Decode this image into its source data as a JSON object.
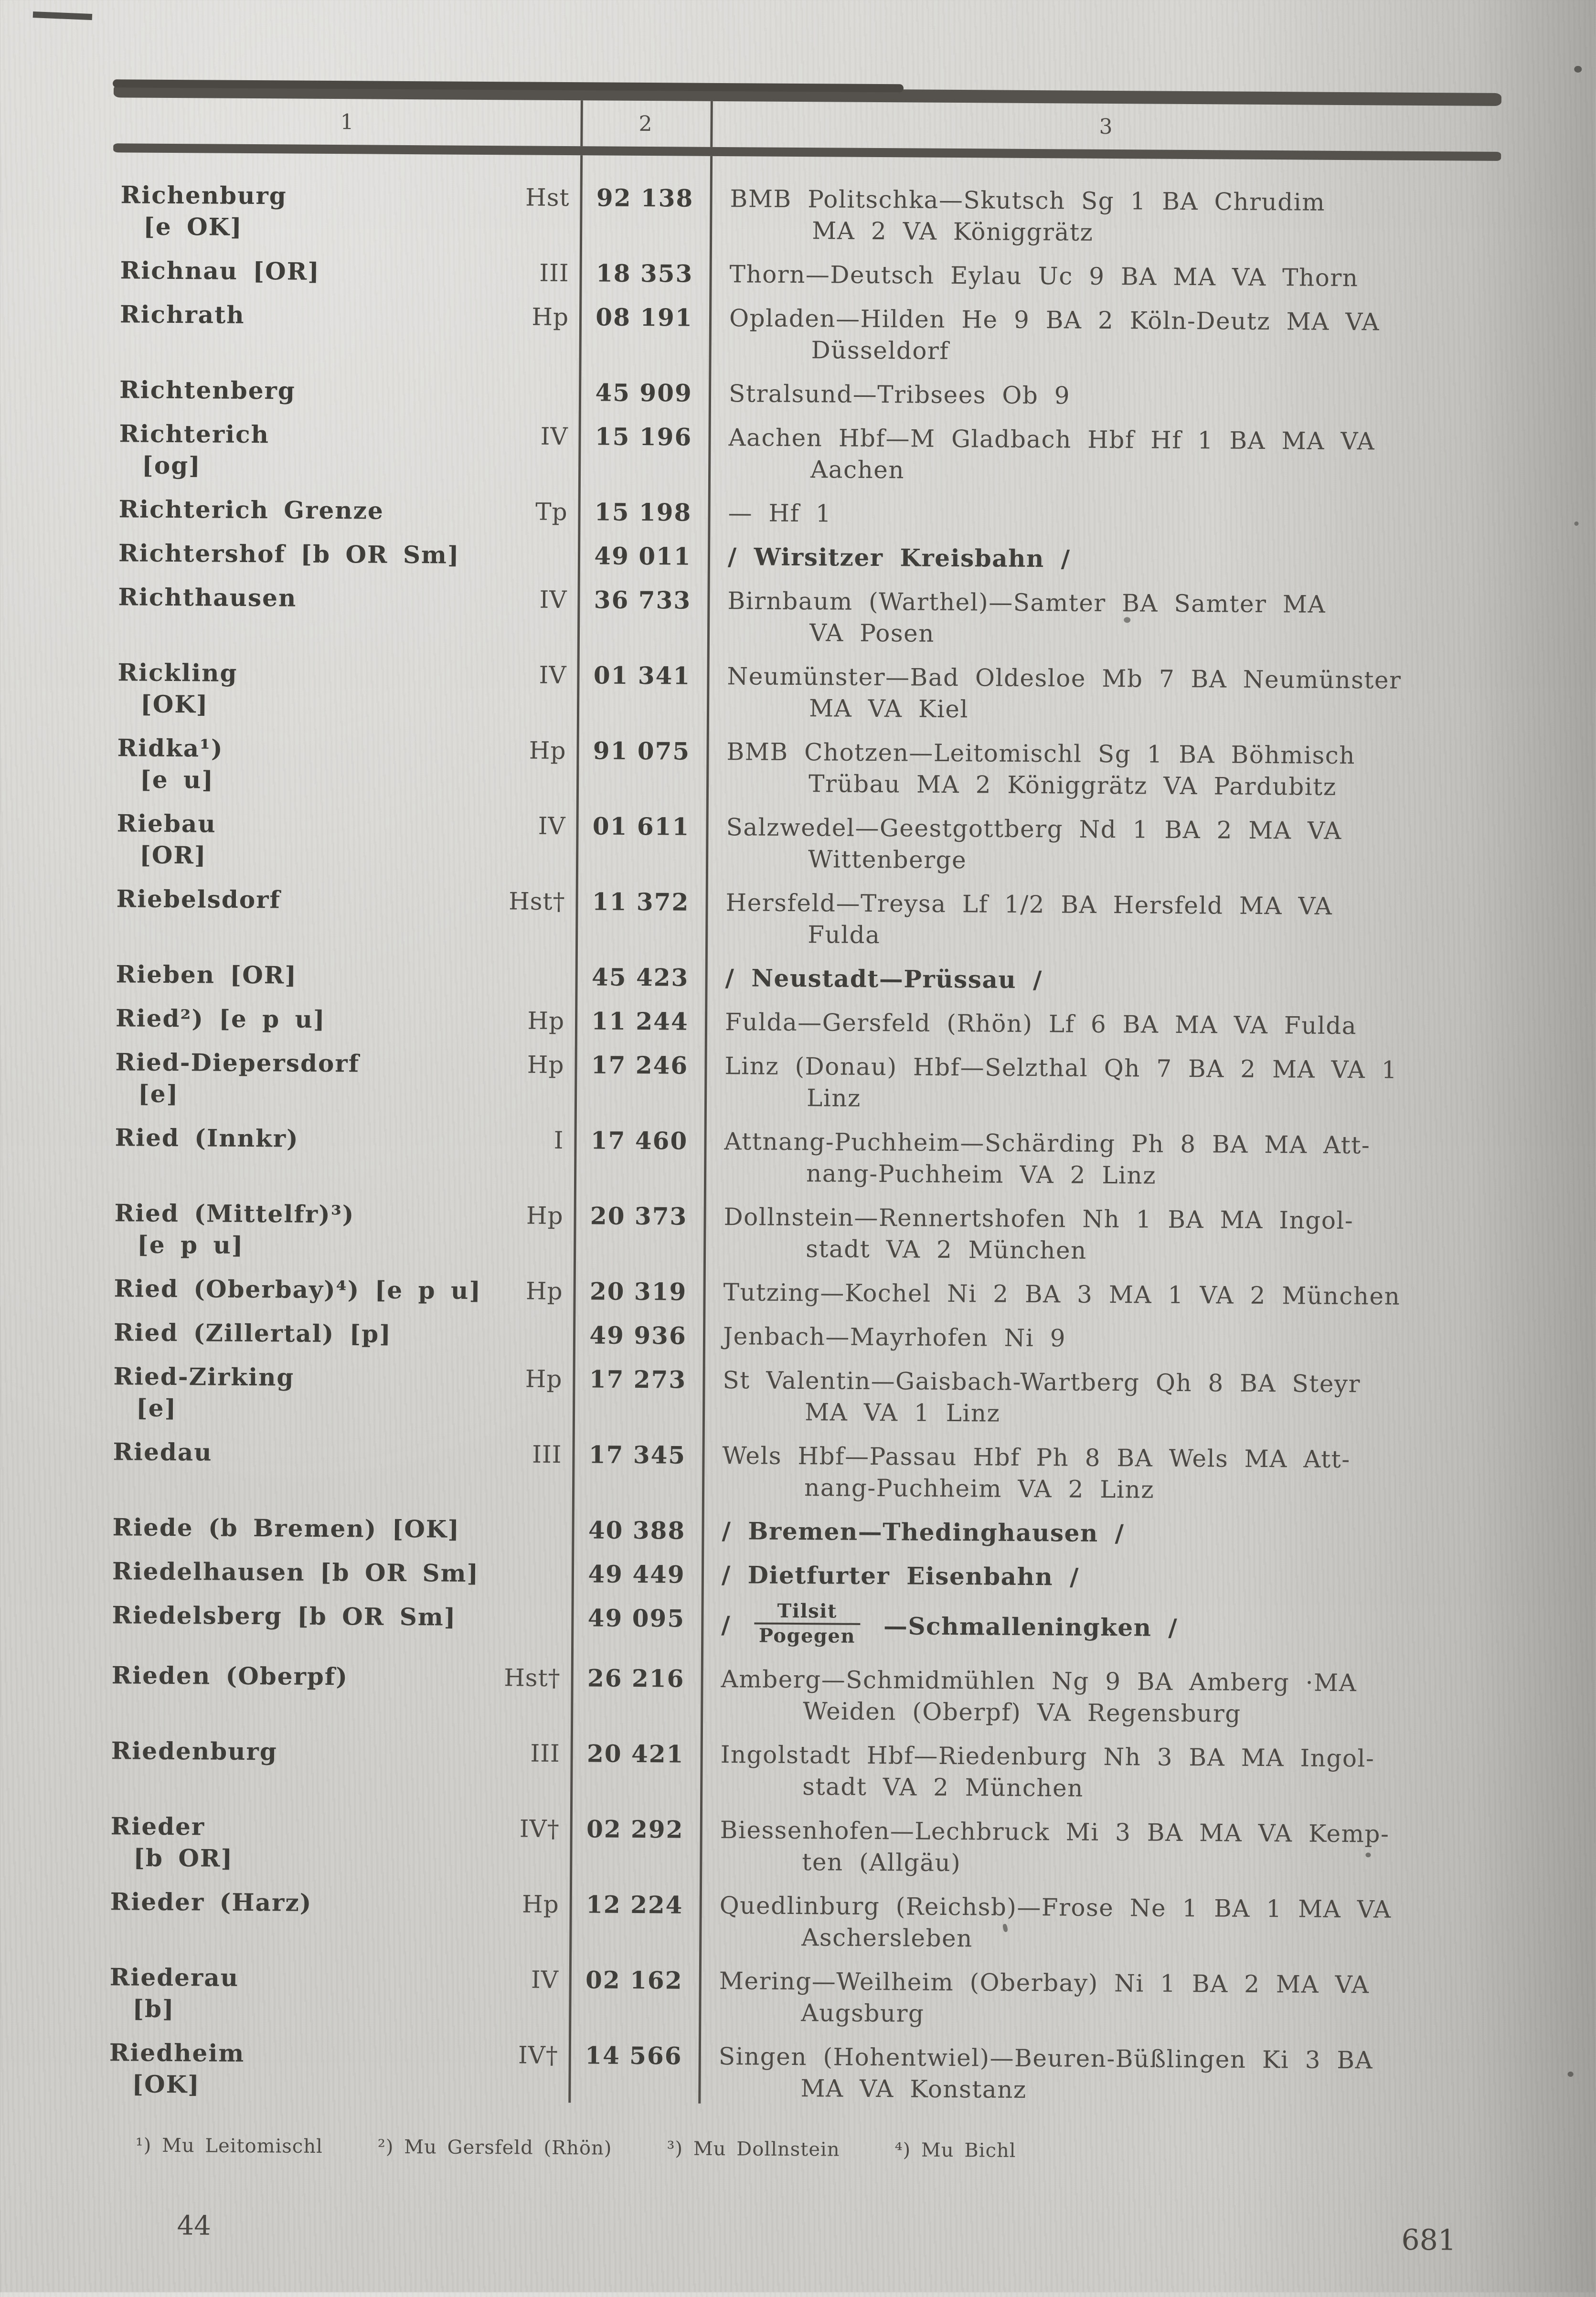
{
  "page": {
    "header": {
      "col1": "1",
      "col2": "2",
      "col3": "3"
    },
    "rows": [
      {
        "name": "Richenburg",
        "sub": "[e OK]",
        "code": "Hst",
        "num": "92 138",
        "route": {
          "bold": false,
          "lines": [
            "BMB Politschka—Skutsch Sg 1 BA Chrudim",
            "MA 2 VA Königgrätz"
          ]
        }
      },
      {
        "name": "Richnau [OR]",
        "sub": "",
        "code": "III",
        "num": "18 353",
        "route": {
          "bold": false,
          "lines": [
            "Thorn—Deutsch Eylau Uc 9 BA MA VA Thorn"
          ]
        }
      },
      {
        "name": "Richrath",
        "sub": "",
        "code": "Hp",
        "num": "08 191",
        "route": {
          "bold": false,
          "lines": [
            "Opladen—Hilden He 9 BA 2 Köln-Deutz MA VA",
            "Düsseldorf"
          ]
        }
      },
      {
        "name": "Richtenberg",
        "sub": "",
        "code": "",
        "num": "45 909",
        "route": {
          "bold": false,
          "lines": [
            "Stralsund—Tribsees Ob 9"
          ]
        }
      },
      {
        "name": "Richterich",
        "sub": "[og]",
        "code": "IV",
        "num": "15 196",
        "route": {
          "bold": false,
          "lines": [
            "Aachen Hbf—M Gladbach Hbf Hf 1 BA MA VA",
            "Aachen"
          ]
        }
      },
      {
        "name": "Richterich Grenze",
        "sub": "",
        "code": "Tp",
        "num": "15 198",
        "route": {
          "bold": false,
          "lines": [
            "— Hf 1"
          ]
        }
      },
      {
        "name": "Richtershof [b OR Sm]",
        "sub": "",
        "code": "",
        "num": "49 011",
        "route": {
          "bold": true,
          "lines": [
            "/ Wirsitzer Kreisbahn /"
          ]
        }
      },
      {
        "name": "Richthausen",
        "sub": "",
        "code": "IV",
        "num": "36 733",
        "route": {
          "bold": false,
          "lines": [
            "Birnbaum (Warthel)—Samter BA Samter MA",
            "VA Posen"
          ]
        }
      },
      {
        "name": "Rickling",
        "sub": "[OK]",
        "code": "IV",
        "num": "01 341",
        "route": {
          "bold": false,
          "lines": [
            "Neumünster—Bad Oldesloe Mb 7 BA Neumünster",
            "MA VA Kiel"
          ]
        }
      },
      {
        "name": "Ridka¹)",
        "sub": "[e u]",
        "code": "Hp",
        "num": "91 075",
        "route": {
          "bold": false,
          "lines": [
            "BMB Chotzen—Leitomischl Sg 1 BA Böhmisch",
            "Trübau MA 2 Königgrätz VA Pardubitz"
          ]
        }
      },
      {
        "name": "Riebau",
        "sub": "[OR]",
        "code": "IV",
        "num": "01 611",
        "route": {
          "bold": false,
          "lines": [
            "Salzwedel—Geestgottberg Nd 1 BA 2 MA VA",
            "Wittenberge"
          ]
        }
      },
      {
        "name": "Riebelsdorf",
        "sub": "",
        "code": "Hst†",
        "num": "11 372",
        "route": {
          "bold": false,
          "lines": [
            "Hersfeld—Treysa Lf 1/2 BA Hersfeld MA VA",
            "Fulda"
          ]
        }
      },
      {
        "name": "Rieben [OR]",
        "sub": "",
        "code": "",
        "num": "45 423",
        "route": {
          "bold": true,
          "lines": [
            "/ Neustadt—Prüssau /"
          ]
        }
      },
      {
        "name": "Ried²) [e p u]",
        "sub": "",
        "code": "Hp",
        "num": "11 244",
        "route": {
          "bold": false,
          "lines": [
            "Fulda—Gersfeld (Rhön) Lf 6 BA MA VA Fulda"
          ]
        }
      },
      {
        "name": "Ried-Diepersdorf",
        "sub": "[e]",
        "code": "Hp",
        "num": "17 246",
        "route": {
          "bold": false,
          "lines": [
            "Linz (Donau) Hbf—Selzthal Qh 7 BA 2 MA VA 1",
            "Linz"
          ]
        }
      },
      {
        "name": "Ried (Innkr)",
        "sub": "",
        "code": "I",
        "num": "17 460",
        "route": {
          "bold": false,
          "lines": [
            "Attnang-Puchheim—Schärding Ph 8 BA MA Att-",
            "nang-Puchheim VA 2 Linz"
          ]
        }
      },
      {
        "name": "Ried (Mittelfr)³)",
        "sub": "[e p u]",
        "code": "Hp",
        "num": "20 373",
        "route": {
          "bold": false,
          "lines": [
            "Dollnstein—Rennertshofen Nh 1 BA MA Ingol-",
            "stadt VA 2 München"
          ]
        }
      },
      {
        "name": "Ried (Oberbay)⁴) [e p u]",
        "sub": "",
        "code": "Hp",
        "num": "20 319",
        "route": {
          "bold": false,
          "lines": [
            "Tutzing—Kochel Ni 2 BA 3 MA 1 VA 2 München"
          ]
        }
      },
      {
        "name": "Ried (Zillertal) [p]",
        "sub": "",
        "code": "",
        "num": "49 936",
        "route": {
          "bold": false,
          "lines": [
            "Jenbach—Mayrhofen Ni 9"
          ]
        }
      },
      {
        "name": "Ried-Zirking",
        "sub": "[e]",
        "code": "Hp",
        "num": "17 273",
        "route": {
          "bold": false,
          "lines": [
            "St Valentin—Gaisbach-Wartberg Qh 8 BA Steyr",
            "MA VA 1 Linz"
          ]
        }
      },
      {
        "name": "Riedau",
        "sub": "",
        "code": "III",
        "num": "17 345",
        "route": {
          "bold": false,
          "lines": [
            "Wels Hbf—Passau Hbf Ph 8 BA Wels MA Att-",
            "nang-Puchheim VA 2 Linz"
          ]
        }
      },
      {
        "name": "Riede (b Bremen) [OK]",
        "sub": "",
        "code": "",
        "num": "40 388",
        "route": {
          "bold": true,
          "lines": [
            "/ Bremen—Thedinghausen /"
          ]
        }
      },
      {
        "name": "Riedelhausen [b OR Sm]",
        "sub": "",
        "code": "",
        "num": "49 449",
        "route": {
          "bold": true,
          "lines": [
            "/ Dietfurter Eisenbahn /"
          ]
        }
      },
      {
        "name": "Riedelsberg [b OR Sm]",
        "sub": "",
        "code": "",
        "num": "49 095",
        "route": {
          "bold": true,
          "lines": [],
          "stack": {
            "pre": "/",
            "top": "Tilsit",
            "bottom": "Pogegen",
            "post": "—Schmalleningken /"
          }
        }
      },
      {
        "name": "Rieden (Oberpf)",
        "sub": "",
        "code": "Hst†",
        "num": "26 216",
        "route": {
          "bold": false,
          "lines": [
            "Amberg—Schmidmühlen Ng 9 BA Amberg ·MA",
            "Weiden (Oberpf) VA Regensburg"
          ]
        }
      },
      {
        "name": "Riedenburg",
        "sub": "",
        "code": "III",
        "num": "20 421",
        "route": {
          "bold": false,
          "lines": [
            "Ingolstadt Hbf—Riedenburg Nh 3 BA MA Ingol-",
            "stadt VA 2 München"
          ]
        }
      },
      {
        "name": "Rieder",
        "sub": "[b OR]",
        "code": "IV†",
        "num": "02 292",
        "route": {
          "bold": false,
          "lines": [
            "Biessenhofen—Lechbruck Mi 3 BA MA VA Kemp-",
            "ten (Allgäu)"
          ]
        }
      },
      {
        "name": "Rieder (Harz)",
        "sub": "",
        "code": "Hp",
        "num": "12 224",
        "route": {
          "bold": false,
          "lines": [
            "Quedlinburg (Reichsb)—Frose Ne 1 BA 1 MA VA",
            "Aschersleben"
          ]
        }
      },
      {
        "name": "Riederau",
        "sub": "[b]",
        "code": "IV",
        "num": "02 162",
        "route": {
          "bold": false,
          "lines": [
            "Mering—Weilheim (Oberbay) Ni 1 BA 2 MA VA",
            "Augsburg"
          ]
        }
      },
      {
        "name": "Riedheim",
        "sub": "[OK]",
        "code": "IV†",
        "num": "14 566",
        "route": {
          "bold": false,
          "lines": [
            "Singen (Hohentwiel)—Beuren-Büßlingen Ki 3 BA",
            "MA VA Konstanz"
          ]
        }
      }
    ],
    "footnotes": [
      "¹) Mu Leitomischl",
      "²) Mu Gersfeld (Rhön)",
      "³) Mu Dollnstein",
      "⁴) Mu Bichl"
    ],
    "page_number_left": "44",
    "page_number_right": "681",
    "colors": {
      "paper": "#d4d3cf",
      "ink": "#4b4843",
      "rule": "#55524d"
    }
  }
}
